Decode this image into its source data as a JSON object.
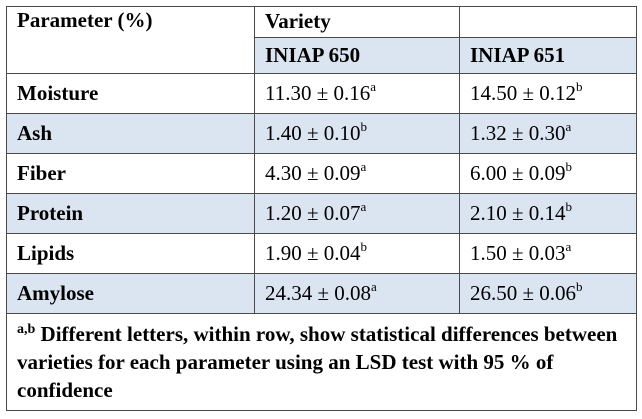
{
  "table": {
    "header": {
      "parameter_label": "Parameter (%)",
      "group_label": "Variety",
      "columns": [
        "INIAP 650",
        "INIAP 651"
      ]
    },
    "rows": [
      {
        "parameter": "Moisture",
        "v650": "11.30 ± 0.16",
        "v650_sup": "a",
        "v651": "14.50 ± 0.12",
        "v651_sup": "b"
      },
      {
        "parameter": "Ash",
        "v650": "1.40 ± 0.10",
        "v650_sup": "b",
        "v651": "1.32 ± 0.30",
        "v651_sup": "a"
      },
      {
        "parameter": "Fiber",
        "v650": "4.30 ± 0.09",
        "v650_sup": "a",
        "v651": "6.00 ± 0.09",
        "v651_sup": "b"
      },
      {
        "parameter": "Protein",
        "v650": "1.20 ± 0.07",
        "v650_sup": "a",
        "v651": "2.10 ± 0.14",
        "v651_sup": "b"
      },
      {
        "parameter": "Lipids",
        "v650": "1.90 ± 0.04",
        "v650_sup": "b",
        "v651": "1.50 ± 0.03",
        "v651_sup": "a"
      },
      {
        "parameter": "Amylose",
        "v650": "24.34 ± 0.08",
        "v650_sup": "a",
        "v651": "26.50 ± 0.06",
        "v651_sup": "b"
      }
    ],
    "footnote": {
      "marker": "a,b",
      "text": " Different letters, within row, show statistical differences between varieties for each parameter using an LSD test with 95 % of confidence"
    },
    "colors": {
      "shade": "#dbe5f1",
      "border": "#4a4a4a"
    }
  }
}
